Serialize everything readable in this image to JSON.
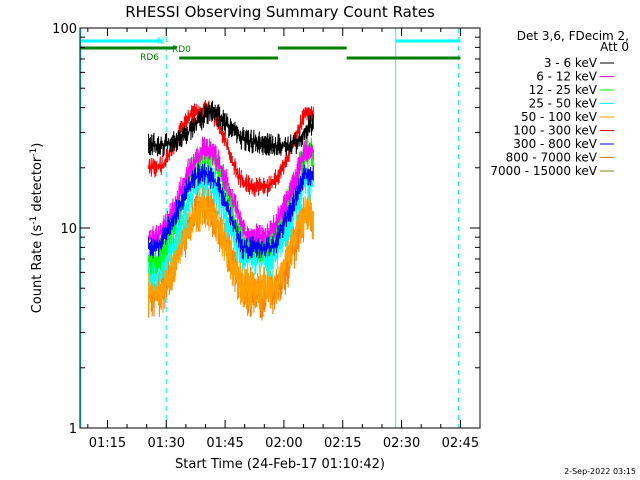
{
  "chart_data": {
    "type": "line",
    "title": "RHESSI Observing Summary Count Rates",
    "xlabel": "Start Time (24-Feb-17 01:10:42)",
    "ylabel_main": "Count Rate (s",
    "ylabel_sup1": "-1",
    "ylabel_mid": " detector",
    "ylabel_sup2": "-1",
    "ylabel_end": ")",
    "y_scale": "log",
    "ylim": [
      1,
      100
    ],
    "y_ticks": [
      {
        "v": 1,
        "label": "1"
      },
      {
        "v": 10,
        "label": "10"
      },
      {
        "v": 100,
        "label": "100"
      }
    ],
    "x_range_min": [
      68,
      170
    ],
    "x_ticks": [
      {
        "m": 75,
        "label": "01:15"
      },
      {
        "m": 90,
        "label": "01:30"
      },
      {
        "m": 105,
        "label": "01:45"
      },
      {
        "m": 120,
        "label": "02:00"
      },
      {
        "m": 135,
        "label": "02:15"
      },
      {
        "m": 150,
        "label": "02:30"
      },
      {
        "m": 165,
        "label": "02:45"
      }
    ],
    "legend_header": [
      "Det 3,6, FDecim 2,",
      "Att 0"
    ],
    "legend_position": "right",
    "series": [
      {
        "name": "3 - 6 keV",
        "color": "#000000",
        "values": [
          26,
          26,
          26,
          27,
          28,
          30,
          33,
          36,
          38,
          36,
          33,
          30,
          28,
          27,
          27,
          26,
          26,
          26,
          26,
          27,
          31,
          33
        ]
      },
      {
        "name": "6 - 12 keV",
        "color": "#ff00ff",
        "values": [
          9,
          9,
          10,
          12,
          15,
          19,
          22,
          25,
          24,
          21,
          17,
          13,
          10,
          9,
          9,
          9,
          10,
          12,
          15,
          19,
          25,
          24
        ]
      },
      {
        "name": "12 - 25 keV",
        "color": "#00ff00",
        "values": [
          7,
          7,
          8,
          10,
          13,
          17,
          21,
          24,
          23,
          19,
          15,
          11,
          9,
          8,
          8,
          8,
          9,
          11,
          14,
          18,
          24,
          23
        ]
      },
      {
        "name": "25 - 50 keV",
        "color": "#00ffff",
        "values": [
          6,
          6,
          7,
          8,
          10,
          13,
          16,
          18,
          17,
          14,
          11,
          9,
          7,
          7,
          7,
          7,
          7,
          9,
          11,
          14,
          17,
          16
        ]
      },
      {
        "name": "50 - 100 keV",
        "color": "#ffa000",
        "values": [
          5,
          5,
          5,
          6,
          8,
          10,
          12,
          13,
          12,
          10,
          8,
          6,
          5,
          5,
          5,
          5,
          5,
          6,
          8,
          10,
          12,
          11
        ]
      },
      {
        "name": "100 - 300 keV",
        "color": "#ff0000",
        "values": [
          20,
          20,
          21,
          25,
          30,
          35,
          38,
          40,
          38,
          33,
          26,
          20,
          17,
          16,
          16,
          16,
          17,
          20,
          24,
          30,
          38,
          36
        ]
      },
      {
        "name": "300 - 800 keV",
        "color": "#0000ff",
        "values": [
          8,
          8,
          9,
          11,
          13,
          16,
          18,
          19,
          18,
          16,
          13,
          10,
          8,
          8,
          8,
          8,
          8,
          10,
          12,
          15,
          19,
          18
        ]
      },
      {
        "name": "800 - 7000 keV",
        "color": "#ff8000",
        "values": [
          4.5,
          4.5,
          5,
          6,
          8,
          10,
          12,
          13,
          12,
          10,
          8,
          6,
          5,
          4.6,
          4.5,
          4.5,
          4.7,
          5.5,
          7,
          9,
          12,
          11
        ]
      },
      {
        "name": "7000 - 15000 keV",
        "color": "#808000",
        "values": []
      }
    ],
    "series_x_min": [
      85.5,
      87.5,
      89.5,
      91.5,
      93.5,
      95.5,
      97.5,
      99.5,
      101.5,
      103.5,
      105.5,
      107.5,
      109.5,
      111.5,
      113.5,
      115.5,
      117.5,
      119.5,
      121.5,
      123.5,
      125.5,
      127.5
    ],
    "flag_bars": [
      {
        "label": "N",
        "color": "#00ffff",
        "y_level": 1,
        "segments": [
          [
            68,
            88.8
          ],
          [
            148.5,
            165
          ]
        ]
      },
      {
        "label": "RD0",
        "color": "#008000",
        "y_level": 2,
        "segments": [
          [
            68,
            92.6
          ],
          [
            118.5,
            136.0
          ]
        ]
      },
      {
        "label": "RD6",
        "color": "#008000",
        "y_level": 3,
        "segments": [
          [
            93.3,
            118.5
          ],
          [
            136.0,
            165
          ]
        ]
      }
    ],
    "vlines_solid": [
      {
        "m": 68.2,
        "color": "#00ffff"
      },
      {
        "m": 148.5,
        "color": "#00ffff"
      }
    ],
    "vlines_dashed": [
      {
        "m": 90.0,
        "color": "#00ffff"
      },
      {
        "m": 164.5,
        "color": "#00ffff"
      }
    ],
    "footer": "2-Sep-2022 03:15"
  }
}
